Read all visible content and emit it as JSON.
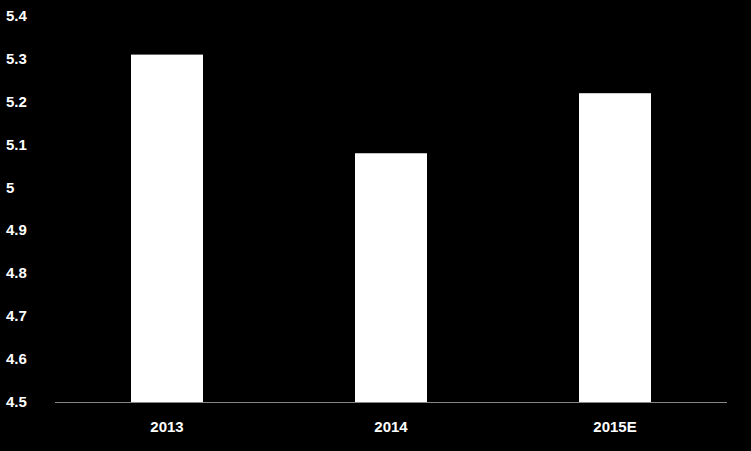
{
  "chart_data": {
    "type": "bar",
    "categories": [
      "2013",
      "2014",
      "2015E"
    ],
    "values": [
      5.31,
      5.08,
      5.22
    ],
    "color": "#ffffff",
    "ylim": [
      4.5,
      5.4
    ],
    "yticks": [
      4.5,
      4.6,
      4.7,
      4.8,
      4.9,
      5,
      5.1,
      5.2,
      5.3,
      5.4
    ],
    "grid": false
  }
}
